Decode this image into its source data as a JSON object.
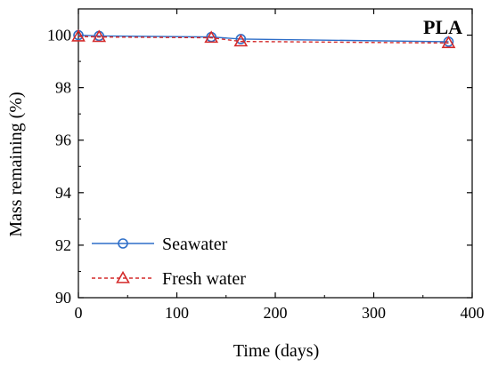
{
  "chart_data": {
    "type": "line",
    "title": "PLA",
    "xlabel": "Time (days)",
    "ylabel": "Mass remaining (%)",
    "xlim": [
      0,
      400
    ],
    "ylim": [
      90,
      101
    ],
    "xticks": [
      "0",
      "100",
      "200",
      "300",
      "400"
    ],
    "yticks": [
      "90",
      "92",
      "94",
      "96",
      "98",
      "100"
    ],
    "grid": false,
    "legend_position": "bottom-left",
    "series": [
      {
        "name": "Seawater",
        "marker": "circle",
        "line_style": "solid",
        "color": "#2f6fc8",
        "x": [
          0,
          21,
          135,
          165,
          376
        ],
        "y": [
          100.0,
          99.97,
          99.93,
          99.85,
          99.75
        ]
      },
      {
        "name": "Fresh water",
        "marker": "triangle",
        "line_style": "dashed",
        "color": "#d42a2a",
        "x": [
          0,
          21,
          135,
          165,
          376
        ],
        "y": [
          99.95,
          99.93,
          99.9,
          99.76,
          99.7
        ]
      }
    ]
  }
}
